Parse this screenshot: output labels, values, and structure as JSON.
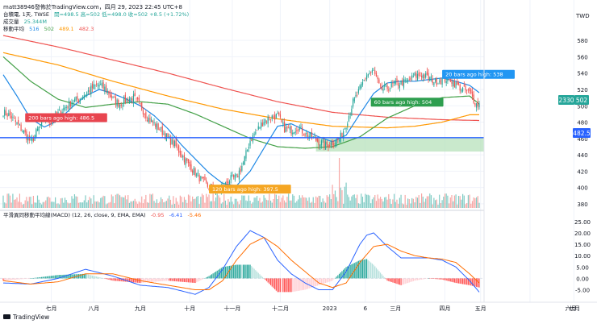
{
  "header": {
    "line1": "matt38946發佈於TradingView.com，四月 29, 2023 22:45 UTC+8",
    "symbol": "台積電, 1天, TWSE",
    "ohlc": "開=498.5  高=502  低=498.0  收=502  +8.5 (+1.72%)",
    "vol_label": "成交量",
    "vol_value": "25.344M",
    "ma_label": "移動平均",
    "ma_values": [
      "516",
      "502",
      "489.1",
      "482.3"
    ]
  },
  "currency": "TWD",
  "markers": {
    "symbol_tag": "2330",
    "price_tag": "502",
    "level_tag": "482.5"
  },
  "annotations": [
    {
      "text": "200 bars ago high: 486.5",
      "color": "#e8454f",
      "x": 16,
      "y": 485
    },
    {
      "text": "120 bars ago high: 397.5",
      "color": "#f5a623",
      "x": 150,
      "y": 397.5
    },
    {
      "text": "60 bars ago high: 504",
      "color": "#2e9e4f",
      "x": 268,
      "y": 504
    },
    {
      "text": "20 bars ago high: 538",
      "color": "#2196f3",
      "x": 320,
      "y": 538
    }
  ],
  "macd_title": "平滑異同移動平均線(MACD) (12, 26, close, 9, EMA, EMA)",
  "macd_values": [
    "-0.95",
    "-6.41",
    "-5.46"
  ],
  "watermark": "TradingView",
  "chart_data": {
    "type": "candlestick",
    "price_axis": {
      "ticks": [
        580,
        560,
        540,
        520,
        500,
        480,
        460,
        440,
        420,
        400,
        380
      ],
      "min": 375,
      "max": 590
    },
    "macd_axis": {
      "ticks": [
        "25.00",
        "20.00",
        "15.00",
        "10.00",
        "5.00",
        "0.00",
        "-5.00"
      ],
      "min": -8,
      "max": 26
    },
    "x_labels": [
      {
        "label": "七月",
        "i": 35
      },
      {
        "label": "八月",
        "i": 66
      },
      {
        "label": "九月",
        "i": 100
      },
      {
        "label": "十月",
        "i": 136
      },
      {
        "label": "十一月",
        "i": 167
      },
      {
        "label": "十二月",
        "i": 202
      },
      {
        "label": "2023",
        "i": 238
      },
      {
        "label": "6",
        "i": 264
      },
      {
        "label": "三月",
        "i": 286
      },
      {
        "label": "四月",
        "i": 322
      },
      {
        "label": "五月",
        "i": 348
      },
      {
        "label": "六月",
        "i": 384
      },
      {
        "label": "七月",
        "i": 416
      }
    ],
    "close_keypoints": [
      [
        0,
        492
      ],
      [
        5,
        488
      ],
      [
        10,
        478
      ],
      [
        15,
        468
      ],
      [
        20,
        455
      ],
      [
        25,
        470
      ],
      [
        30,
        486
      ],
      [
        35,
        480
      ],
      [
        40,
        490
      ],
      [
        45,
        498
      ],
      [
        50,
        505
      ],
      [
        55,
        508
      ],
      [
        60,
        515
      ],
      [
        65,
        522
      ],
      [
        70,
        526
      ],
      [
        75,
        520
      ],
      [
        80,
        508
      ],
      [
        85,
        502
      ],
      [
        90,
        508
      ],
      [
        95,
        510
      ],
      [
        100,
        500
      ],
      [
        105,
        486
      ],
      [
        110,
        478
      ],
      [
        115,
        470
      ],
      [
        120,
        460
      ],
      [
        125,
        452
      ],
      [
        130,
        440
      ],
      [
        135,
        428
      ],
      [
        140,
        418
      ],
      [
        145,
        408
      ],
      [
        150,
        400
      ],
      [
        155,
        396
      ],
      [
        160,
        400
      ],
      [
        165,
        410
      ],
      [
        170,
        412
      ],
      [
        175,
        430
      ],
      [
        180,
        458
      ],
      [
        185,
        470
      ],
      [
        190,
        482
      ],
      [
        195,
        486
      ],
      [
        200,
        488
      ],
      [
        205,
        472
      ],
      [
        210,
        470
      ],
      [
        215,
        474
      ],
      [
        220,
        466
      ],
      [
        225,
        462
      ],
      [
        230,
        456
      ],
      [
        235,
        452
      ],
      [
        240,
        455
      ],
      [
        245,
        458
      ],
      [
        250,
        478
      ],
      [
        255,
        504
      ],
      [
        260,
        520
      ],
      [
        265,
        538
      ],
      [
        270,
        542
      ],
      [
        275,
        520
      ],
      [
        280,
        522
      ],
      [
        285,
        526
      ],
      [
        290,
        528
      ],
      [
        295,
        530
      ],
      [
        300,
        536
      ],
      [
        305,
        538
      ],
      [
        310,
        534
      ],
      [
        315,
        530
      ],
      [
        320,
        532
      ],
      [
        325,
        534
      ],
      [
        330,
        526
      ],
      [
        335,
        520
      ],
      [
        340,
        516
      ],
      [
        345,
        502
      ]
    ],
    "ma_20_keypoints": [
      [
        0,
        538
      ],
      [
        10,
        512
      ],
      [
        20,
        484
      ],
      [
        30,
        474
      ],
      [
        40,
        482
      ],
      [
        50,
        498
      ],
      [
        60,
        512
      ],
      [
        70,
        520
      ],
      [
        80,
        515
      ],
      [
        90,
        508
      ],
      [
        100,
        500
      ],
      [
        110,
        488
      ],
      [
        120,
        472
      ],
      [
        130,
        452
      ],
      [
        140,
        435
      ],
      [
        150,
        418
      ],
      [
        160,
        405
      ],
      [
        170,
        402
      ],
      [
        180,
        420
      ],
      [
        190,
        448
      ],
      [
        200,
        475
      ],
      [
        210,
        478
      ],
      [
        220,
        470
      ],
      [
        230,
        462
      ],
      [
        240,
        456
      ],
      [
        250,
        464
      ],
      [
        260,
        490
      ],
      [
        270,
        515
      ],
      [
        280,
        528
      ],
      [
        290,
        530
      ],
      [
        300,
        530
      ],
      [
        310,
        532
      ],
      [
        320,
        534
      ],
      [
        330,
        530
      ],
      [
        340,
        525
      ],
      [
        347,
        516
      ]
    ],
    "ma_60_keypoints": [
      [
        0,
        560
      ],
      [
        20,
        530
      ],
      [
        40,
        508
      ],
      [
        60,
        498
      ],
      [
        80,
        502
      ],
      [
        100,
        505
      ],
      [
        120,
        502
      ],
      [
        140,
        490
      ],
      [
        160,
        475
      ],
      [
        180,
        460
      ],
      [
        200,
        450
      ],
      [
        220,
        448
      ],
      [
        240,
        450
      ],
      [
        260,
        462
      ],
      [
        280,
        485
      ],
      [
        300,
        500
      ],
      [
        320,
        510
      ],
      [
        340,
        512
      ],
      [
        347,
        502
      ]
    ],
    "ma_120_keypoints": [
      [
        0,
        565
      ],
      [
        40,
        550
      ],
      [
        80,
        530
      ],
      [
        120,
        512
      ],
      [
        160,
        496
      ],
      [
        200,
        484
      ],
      [
        240,
        475
      ],
      [
        280,
        473
      ],
      [
        300,
        475
      ],
      [
        320,
        480
      ],
      [
        340,
        489
      ],
      [
        347,
        489
      ]
    ],
    "ma_200_keypoints": [
      [
        0,
        586
      ],
      [
        40,
        572
      ],
      [
        80,
        556
      ],
      [
        120,
        540
      ],
      [
        160,
        522
      ],
      [
        200,
        505
      ],
      [
        240,
        492
      ],
      [
        280,
        486
      ],
      [
        320,
        483
      ],
      [
        347,
        482
      ]
    ],
    "levels": {
      "support_line": 461,
      "band_top": 461,
      "band_bottom": 444,
      "band_start_i": 228
    },
    "volume": {
      "max_bars": 21.9,
      "spike_i": 245
    },
    "macd_keypoints": {
      "dif": [
        [
          0,
          -2
        ],
        [
          20,
          -2.5
        ],
        [
          40,
          0
        ],
        [
          60,
          4
        ],
        [
          80,
          1
        ],
        [
          100,
          -3
        ],
        [
          120,
          -4
        ],
        [
          140,
          -7
        ],
        [
          150,
          -4
        ],
        [
          160,
          4
        ],
        [
          170,
          14
        ],
        [
          180,
          21
        ],
        [
          190,
          18
        ],
        [
          200,
          8
        ],
        [
          210,
          2
        ],
        [
          220,
          -2
        ],
        [
          230,
          -5
        ],
        [
          240,
          -5
        ],
        [
          250,
          3
        ],
        [
          260,
          15
        ],
        [
          265,
          19
        ],
        [
          270,
          20
        ],
        [
          280,
          14
        ],
        [
          290,
          9
        ],
        [
          300,
          9
        ],
        [
          310,
          9
        ],
        [
          320,
          8
        ],
        [
          330,
          5
        ],
        [
          340,
          -1
        ],
        [
          347,
          -6
        ]
      ],
      "dea": [
        [
          0,
          -1
        ],
        [
          20,
          -2.5
        ],
        [
          40,
          -1.5
        ],
        [
          60,
          2
        ],
        [
          80,
          2
        ],
        [
          100,
          -1
        ],
        [
          120,
          -3
        ],
        [
          140,
          -5
        ],
        [
          150,
          -5
        ],
        [
          160,
          -1
        ],
        [
          170,
          8
        ],
        [
          180,
          15
        ],
        [
          190,
          18
        ],
        [
          200,
          14
        ],
        [
          210,
          8
        ],
        [
          220,
          3
        ],
        [
          230,
          -2
        ],
        [
          240,
          -4
        ],
        [
          250,
          -2
        ],
        [
          260,
          7
        ],
        [
          270,
          14
        ],
        [
          280,
          15
        ],
        [
          290,
          12
        ],
        [
          300,
          10
        ],
        [
          310,
          9
        ],
        [
          320,
          8.5
        ],
        [
          330,
          7
        ],
        [
          340,
          2
        ],
        [
          347,
          -2
        ]
      ]
    }
  }
}
